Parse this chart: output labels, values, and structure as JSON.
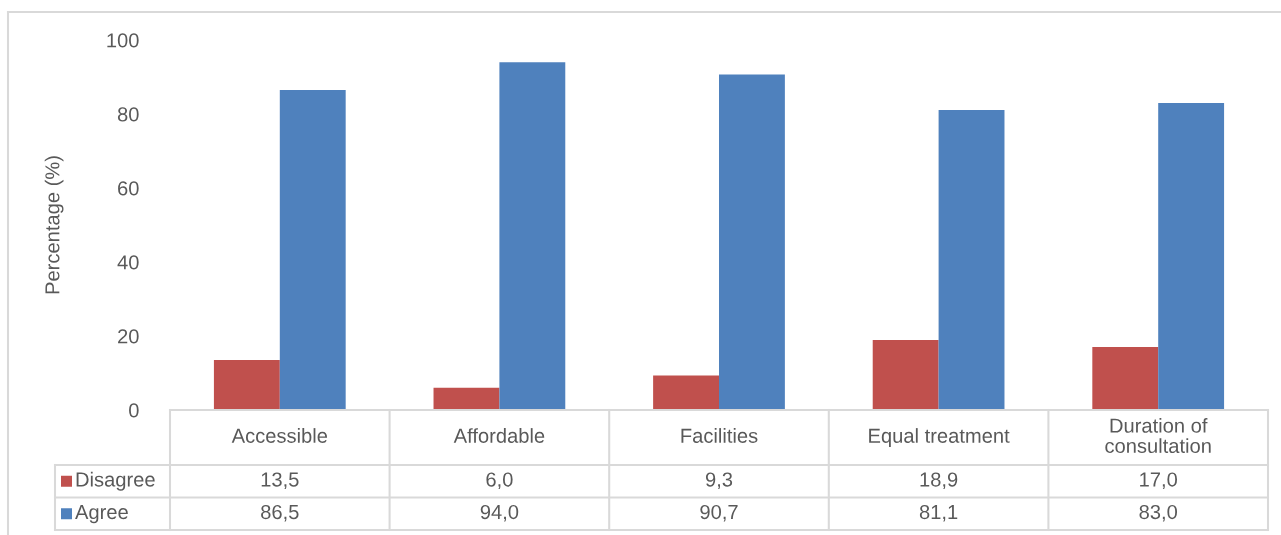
{
  "chart_data": {
    "type": "bar",
    "ylabel": "Percentage (%)",
    "categories": [
      "Accessible",
      "Affordable",
      "Facilities",
      "Equal treatment",
      "Duration of\nconsultation"
    ],
    "series": [
      {
        "name": "Disagree",
        "color": "#c0504d",
        "values": [
          13.5,
          6.0,
          9.3,
          18.9,
          17.0
        ],
        "value_labels": [
          "13,5",
          "6,0",
          "9,3",
          "18,9",
          "17,0"
        ]
      },
      {
        "name": "Agree",
        "color": "#4f81bd",
        "values": [
          86.5,
          94.0,
          90.7,
          81.1,
          83.0
        ],
        "value_labels": [
          "86,5",
          "94,0",
          "90,7",
          "81,1",
          "83,0"
        ]
      }
    ],
    "ylim": [
      0,
      100
    ],
    "yticks": [
      0,
      20,
      40,
      60,
      80,
      100
    ],
    "legend": "bottom"
  }
}
